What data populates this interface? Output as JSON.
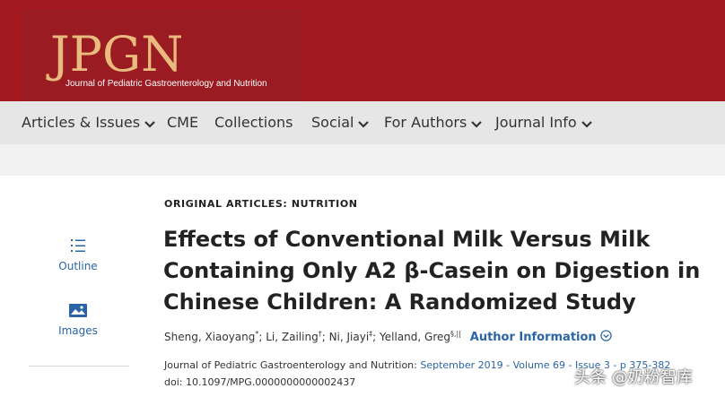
{
  "header": {
    "logo_text": "JPGN",
    "logo_subtitle": "Journal of Pediatric Gastroenterology and Nutrition",
    "colors": {
      "banner": "#a3191f",
      "logo": "#e9bb7e"
    }
  },
  "nav": {
    "items": [
      {
        "label": "Articles & Issues",
        "dropdown": true
      },
      {
        "label": "CME",
        "dropdown": false
      },
      {
        "label": "Collections",
        "dropdown": false
      },
      {
        "label": "Social",
        "dropdown": true
      },
      {
        "label": "For Authors",
        "dropdown": true
      },
      {
        "label": "Journal Info",
        "dropdown": true
      }
    ]
  },
  "sidebar": {
    "outline_label": "Outline",
    "outline_icon": "list-icon",
    "images_label": "Images",
    "images_icon": "image-icon"
  },
  "article": {
    "section": "ORIGINAL ARTICLES: NUTRITION",
    "title": "Effects of Conventional Milk Versus Milk Containing Only A2 β-Casein on Digestion in Chinese Children: A Randomized Study",
    "authors": [
      {
        "name": "Sheng, Xiaoyang",
        "mark": "*"
      },
      {
        "name": "Li, Zailing",
        "mark": "†"
      },
      {
        "name": "Ni, Jiayi",
        "mark": "‡"
      },
      {
        "name": "Yelland, Greg",
        "mark": "§,||"
      }
    ],
    "author_info_label": "Author Information",
    "journal_name": "Journal of Pediatric Gastroenterology and Nutrition:",
    "issue_info": "September 2019 - Volume 69 - Issue 3 - p 375-382",
    "doi": "doi: 10.1097/MPG.0000000000002437"
  },
  "watermark": "头条 @奶粉智库"
}
